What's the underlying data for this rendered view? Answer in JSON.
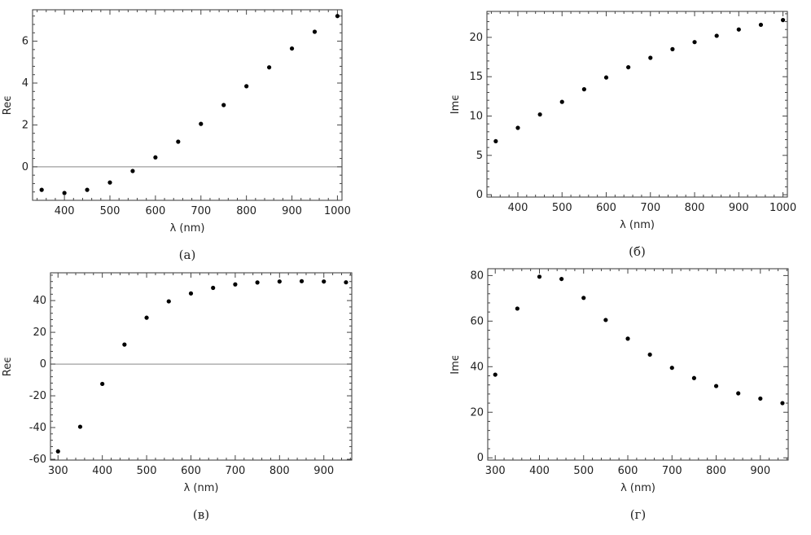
{
  "chart_data": [
    {
      "panel": "(а)",
      "type": "scatter",
      "xlabel": "λ (nm)",
      "ylabel": "Reϵ",
      "xlim": [
        330,
        1010
      ],
      "ylim": [
        -1.6,
        7.5
      ],
      "xticks": [
        400,
        500,
        600,
        700,
        800,
        900,
        1000
      ],
      "yticks": [
        0,
        2,
        4,
        6
      ],
      "zero_line": true,
      "x": [
        350,
        400,
        450,
        500,
        550,
        600,
        650,
        700,
        750,
        800,
        850,
        900,
        950,
        1000
      ],
      "y": [
        -1.1,
        -1.25,
        -1.1,
        -0.75,
        -0.2,
        0.45,
        1.2,
        2.05,
        2.95,
        3.85,
        4.75,
        5.65,
        6.45,
        7.2
      ]
    },
    {
      "panel": "(б)",
      "type": "scatter",
      "xlabel": "λ (nm)",
      "ylabel": "Imϵ",
      "xlim": [
        330,
        1010
      ],
      "ylim": [
        -0.3,
        23.3
      ],
      "xticks": [
        400,
        500,
        600,
        700,
        800,
        900,
        1000
      ],
      "yticks": [
        0,
        5,
        10,
        15,
        20
      ],
      "zero_line": false,
      "x": [
        350,
        400,
        450,
        500,
        550,
        600,
        650,
        700,
        750,
        800,
        850,
        900,
        950,
        1000
      ],
      "y": [
        6.8,
        8.5,
        10.2,
        11.8,
        13.4,
        14.9,
        16.2,
        17.4,
        18.5,
        19.4,
        20.2,
        21.0,
        21.6,
        22.2
      ]
    },
    {
      "panel": "(в)",
      "type": "scatter",
      "xlabel": "λ (nm)",
      "ylabel": "Reϵ",
      "xlim": [
        283,
        963
      ],
      "ylim": [
        -60.5,
        57.5
      ],
      "xticks": [
        300,
        400,
        500,
        600,
        700,
        800,
        900
      ],
      "yticks": [
        -60,
        -40,
        -20,
        0,
        20,
        40
      ],
      "zero_line": true,
      "x": [
        300,
        350,
        400,
        450,
        500,
        550,
        600,
        650,
        700,
        750,
        800,
        850,
        900,
        950
      ],
      "y": [
        -55,
        -39.5,
        -12.5,
        12.3,
        29.2,
        39.5,
        44.5,
        48.0,
        50.2,
        51.4,
        52.0,
        52.2,
        52.0,
        51.5
      ]
    },
    {
      "panel": "(г)",
      "type": "scatter",
      "xlabel": "λ (nm)",
      "ylabel": "Imϵ",
      "xlim": [
        283,
        963
      ],
      "ylim": [
        -1,
        83
      ],
      "xticks": [
        300,
        400,
        500,
        600,
        700,
        800,
        900
      ],
      "yticks": [
        0,
        20,
        40,
        60,
        80
      ],
      "zero_line": false,
      "x": [
        300,
        350,
        400,
        450,
        500,
        550,
        600,
        650,
        700,
        750,
        800,
        850,
        900,
        950
      ],
      "y": [
        36.5,
        65.5,
        79.5,
        78.5,
        70.2,
        60.5,
        52.3,
        45.3,
        39.5,
        35.0,
        31.5,
        28.3,
        26.0,
        24.0
      ]
    }
  ]
}
